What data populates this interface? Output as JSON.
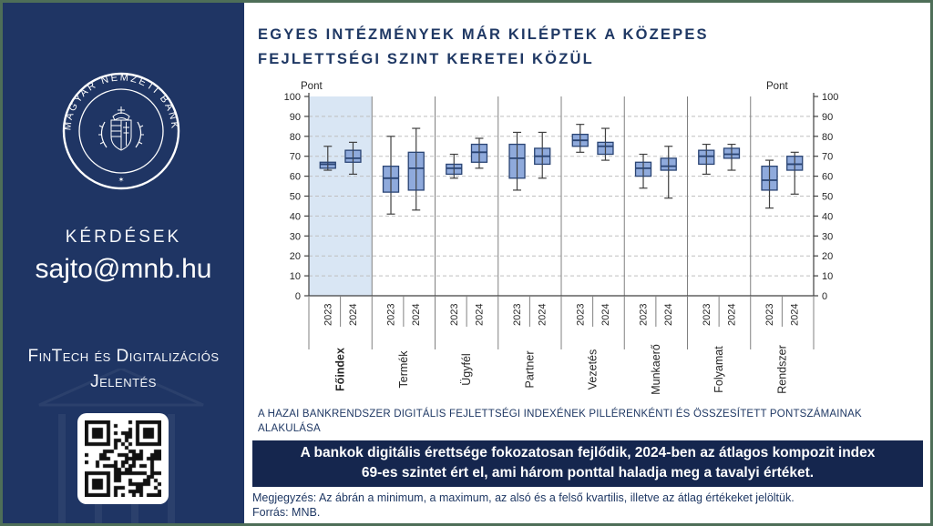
{
  "colors": {
    "border_green": "#4E6E58",
    "sidebar_bg": "#1F3564",
    "banner_bg": "#15264E",
    "accent_navy": "#1F3864",
    "box_fill": "#8FAADC",
    "box_border": "#2A4473",
    "highlight_bg": "#D9E6F4",
    "grid": "#BFBFBF",
    "divider": "#808080",
    "axis": "#404040",
    "text_dark": "#262626"
  },
  "sidebar": {
    "seal_text": "MAGYAR NEMZETI BANK",
    "questions_label": "KÉRDÉSEK",
    "email": "sajto@mnb.hu",
    "report_line1": "FinTech és Digitalizációs",
    "report_line2": "Jelentés"
  },
  "main": {
    "title_line1": "EGYES INTÉZMÉNYEK MÁR KILÉPTEK A KÖZEPES",
    "title_line2": "FEJLETTSÉGI SZINT KERETEI KÖZÜL",
    "caption_line1": "A HAZAI BANKRENDSZER DIGITÁLIS FEJLETTSÉGI INDEXÉNEK PILLÉRENKÉNTI ÉS ÖSSZESÍTETT PONTSZÁMAINAK",
    "caption_line2": "ALAKULÁSA",
    "banner_line1": "A bankok digitális érettsége fokozatosan fejlődik, 2024-ben az átlagos kompozit index",
    "banner_line2": "69-es szintet ért el, ami három ponttal haladja meg a tavalyi értéket.",
    "note": "Megjegyzés: Az ábrán a minimum, a maximum, az alsó és a felső kvartilis, illetve az átlag értékeket jelöltük.",
    "source": "Forrás: MNB."
  },
  "chart_data": {
    "type": "boxplot",
    "axis_label_left": "Pont",
    "axis_label_right": "Pont",
    "ylim": [
      0,
      100
    ],
    "ytick_step": 10,
    "grid": true,
    "box_stats": [
      "min",
      "q1",
      "mean",
      "q3",
      "max"
    ],
    "groups": [
      {
        "name": "Főindex",
        "bold": true,
        "highlight": true,
        "boxes": [
          {
            "year": "2023",
            "min": 63,
            "q1": 64,
            "mean": 66,
            "q3": 67,
            "max": 75
          },
          {
            "year": "2024",
            "min": 61,
            "q1": 67,
            "mean": 69,
            "q3": 73,
            "max": 77
          }
        ]
      },
      {
        "name": "Termék",
        "bold": false,
        "highlight": false,
        "boxes": [
          {
            "year": "2023",
            "min": 41,
            "q1": 52,
            "mean": 59,
            "q3": 65,
            "max": 80
          },
          {
            "year": "2024",
            "min": 43,
            "q1": 53,
            "mean": 64,
            "q3": 72,
            "max": 84
          }
        ]
      },
      {
        "name": "Ügyfél",
        "bold": false,
        "highlight": false,
        "boxes": [
          {
            "year": "2023",
            "min": 59,
            "q1": 61,
            "mean": 64,
            "q3": 66,
            "max": 71
          },
          {
            "year": "2024",
            "min": 64,
            "q1": 67,
            "mean": 72,
            "q3": 76,
            "max": 79
          }
        ]
      },
      {
        "name": "Partner",
        "bold": false,
        "highlight": false,
        "boxes": [
          {
            "year": "2023",
            "min": 53,
            "q1": 59,
            "mean": 69,
            "q3": 76,
            "max": 82
          },
          {
            "year": "2024",
            "min": 59,
            "q1": 66,
            "mean": 70,
            "q3": 74,
            "max": 82
          }
        ]
      },
      {
        "name": "Vezetés",
        "bold": false,
        "highlight": false,
        "boxes": [
          {
            "year": "2023",
            "min": 72,
            "q1": 75,
            "mean": 78,
            "q3": 81,
            "max": 86
          },
          {
            "year": "2024",
            "min": 68,
            "q1": 71,
            "mean": 75,
            "q3": 77,
            "max": 84
          }
        ]
      },
      {
        "name": "Munkaerő",
        "bold": false,
        "highlight": false,
        "boxes": [
          {
            "year": "2023",
            "min": 54,
            "q1": 60,
            "mean": 64,
            "q3": 67,
            "max": 71
          },
          {
            "year": "2024",
            "min": 49,
            "q1": 63,
            "mean": 65,
            "q3": 69,
            "max": 75
          }
        ]
      },
      {
        "name": "Folyamat",
        "bold": false,
        "highlight": false,
        "boxes": [
          {
            "year": "2023",
            "min": 61,
            "q1": 66,
            "mean": 70,
            "q3": 73,
            "max": 76
          },
          {
            "year": "2024",
            "min": 63,
            "q1": 69,
            "mean": 71,
            "q3": 74,
            "max": 76
          }
        ]
      },
      {
        "name": "Rendszer",
        "bold": false,
        "highlight": false,
        "boxes": [
          {
            "year": "2023",
            "min": 44,
            "q1": 53,
            "mean": 58,
            "q3": 65,
            "max": 68
          },
          {
            "year": "2024",
            "min": 51,
            "q1": 63,
            "mean": 66,
            "q3": 70,
            "max": 72
          }
        ]
      }
    ]
  }
}
